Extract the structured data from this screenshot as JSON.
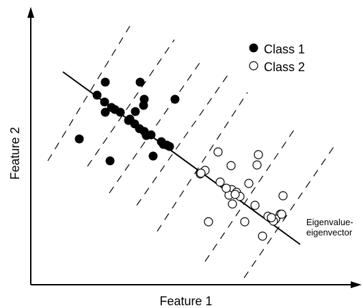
{
  "legend": {
    "class1": "Class 1",
    "class2": "Class 2"
  },
  "axes": {
    "x_label": "Feature 1",
    "y_label": "Feature 2"
  },
  "annotation": {
    "line1": "Eigenvalue-",
    "line2": "eigenvector"
  },
  "diagram": {
    "class1_count": 26,
    "class2_count": 27,
    "dashed_projection_lines": 7
  }
}
